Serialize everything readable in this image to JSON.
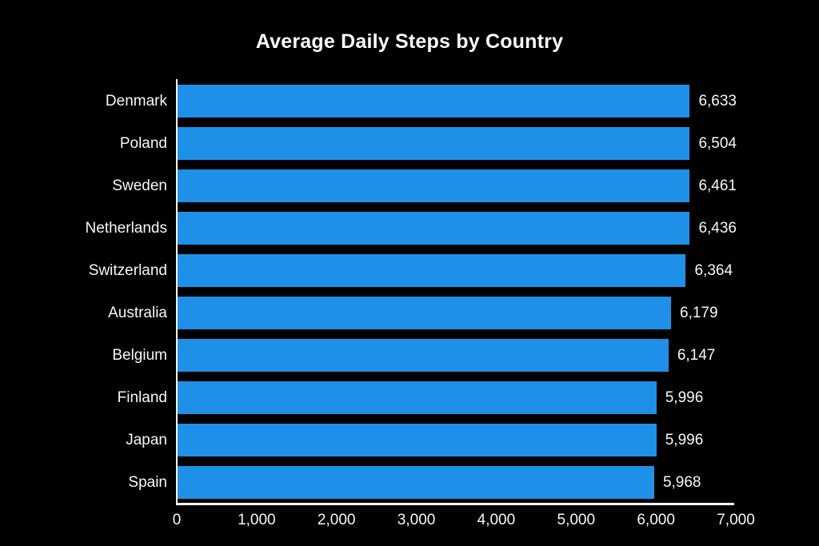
{
  "chart_data": {
    "type": "bar",
    "orientation": "horizontal",
    "title": "Average Daily Steps by Country",
    "categories": [
      "Denmark",
      "Poland",
      "Sweden",
      "Netherlands",
      "Switzerland",
      "Australia",
      "Belgium",
      "Finland",
      "Japan",
      "Spain"
    ],
    "values": [
      6633,
      6504,
      6461,
      6436,
      6364,
      6179,
      6147,
      5996,
      5996,
      5968
    ],
    "value_labels": [
      "6,633",
      "6,504",
      "6,461",
      "6,436",
      "6,364",
      "6,179",
      "6,147",
      "5,996",
      "5,996",
      "5,968"
    ],
    "xlabel": "",
    "ylabel": "",
    "xlim": [
      0,
      7000
    ],
    "x_tick_values": [
      0,
      1000,
      2000,
      3000,
      4000,
      5000,
      6000,
      7000
    ],
    "x_tick_labels": [
      "0",
      "1,000",
      "2,000",
      "3,000",
      "4,000",
      "5,000",
      "6,000",
      "7,000"
    ],
    "grid": "off",
    "legend": "none",
    "bar_color": "#1f90e8",
    "background_color": "#000000",
    "text_color": "#ffffff"
  }
}
